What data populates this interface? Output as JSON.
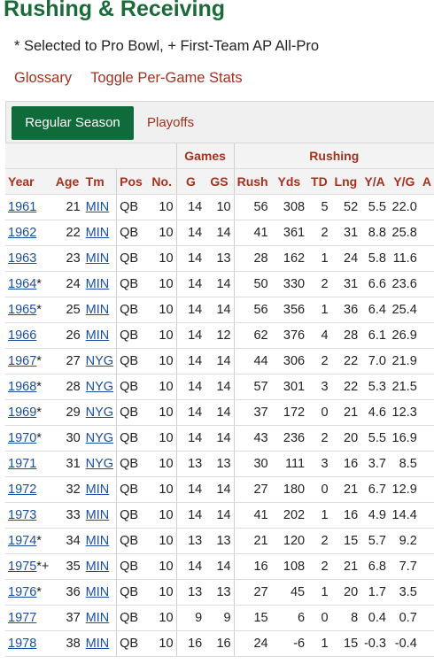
{
  "page": {
    "title": "Rushing & Receiving",
    "legend_note": "* Selected to Pro Bowl, + First-Team AP All-Pro",
    "links": {
      "glossary": "Glossary",
      "toggle": "Toggle Per-Game Stats"
    },
    "tabs": {
      "active": "Regular Season",
      "inactive": "Playoffs"
    }
  },
  "table": {
    "groups": {
      "games": "Games",
      "rushing": "Rushing"
    },
    "columns": [
      "Year",
      "Age",
      "Tm",
      "Pos",
      "No.",
      "G",
      "GS",
      "Rush",
      "Yds",
      "TD",
      "Lng",
      "Y/A",
      "Y/G",
      "A"
    ],
    "rows": [
      {
        "year": "1961",
        "note": "",
        "age": "21",
        "tm": "MIN",
        "pos": "QB",
        "no": "10",
        "g": "14",
        "gs": "10",
        "rush": "56",
        "yds": "308",
        "td": "5",
        "lng": "52",
        "ya": "5.5",
        "yg": "22.0"
      },
      {
        "year": "1962",
        "note": "",
        "age": "22",
        "tm": "MIN",
        "pos": "QB",
        "no": "10",
        "g": "14",
        "gs": "14",
        "rush": "41",
        "yds": "361",
        "td": "2",
        "lng": "31",
        "ya": "8.8",
        "yg": "25.8"
      },
      {
        "year": "1963",
        "note": "",
        "age": "23",
        "tm": "MIN",
        "pos": "QB",
        "no": "10",
        "g": "14",
        "gs": "13",
        "rush": "28",
        "yds": "162",
        "td": "1",
        "lng": "24",
        "ya": "5.8",
        "yg": "11.6"
      },
      {
        "year": "1964",
        "note": "*",
        "age": "24",
        "tm": "MIN",
        "pos": "QB",
        "no": "10",
        "g": "14",
        "gs": "14",
        "rush": "50",
        "yds": "330",
        "td": "2",
        "lng": "31",
        "ya": "6.6",
        "yg": "23.6"
      },
      {
        "year": "1965",
        "note": "*",
        "age": "25",
        "tm": "MIN",
        "pos": "QB",
        "no": "10",
        "g": "14",
        "gs": "14",
        "rush": "56",
        "yds": "356",
        "td": "1",
        "lng": "36",
        "ya": "6.4",
        "yg": "25.4"
      },
      {
        "year": "1966",
        "note": "",
        "age": "26",
        "tm": "MIN",
        "pos": "QB",
        "no": "10",
        "g": "14",
        "gs": "12",
        "rush": "62",
        "yds": "376",
        "td": "4",
        "lng": "28",
        "ya": "6.1",
        "yg": "26.9"
      },
      {
        "year": "1967",
        "note": "*",
        "age": "27",
        "tm": "NYG",
        "pos": "QB",
        "no": "10",
        "g": "14",
        "gs": "14",
        "rush": "44",
        "yds": "306",
        "td": "2",
        "lng": "22",
        "ya": "7.0",
        "yg": "21.9"
      },
      {
        "year": "1968",
        "note": "*",
        "age": "28",
        "tm": "NYG",
        "pos": "QB",
        "no": "10",
        "g": "14",
        "gs": "14",
        "rush": "57",
        "yds": "301",
        "td": "3",
        "lng": "22",
        "ya": "5.3",
        "yg": "21.5"
      },
      {
        "year": "1969",
        "note": "*",
        "age": "29",
        "tm": "NYG",
        "pos": "QB",
        "no": "10",
        "g": "14",
        "gs": "14",
        "rush": "37",
        "yds": "172",
        "td": "0",
        "lng": "21",
        "ya": "4.6",
        "yg": "12.3"
      },
      {
        "year": "1970",
        "note": "*",
        "age": "30",
        "tm": "NYG",
        "pos": "QB",
        "no": "10",
        "g": "14",
        "gs": "14",
        "rush": "43",
        "yds": "236",
        "td": "2",
        "lng": "20",
        "ya": "5.5",
        "yg": "16.9"
      },
      {
        "year": "1971",
        "note": "",
        "age": "31",
        "tm": "NYG",
        "pos": "QB",
        "no": "10",
        "g": "13",
        "gs": "13",
        "rush": "30",
        "yds": "111",
        "td": "3",
        "lng": "16",
        "ya": "3.7",
        "yg": "8.5"
      },
      {
        "year": "1972",
        "note": "",
        "age": "32",
        "tm": "MIN",
        "pos": "QB",
        "no": "10",
        "g": "14",
        "gs": "14",
        "rush": "27",
        "yds": "180",
        "td": "0",
        "lng": "21",
        "ya": "6.7",
        "yg": "12.9"
      },
      {
        "year": "1973",
        "note": "",
        "age": "33",
        "tm": "MIN",
        "pos": "QB",
        "no": "10",
        "g": "14",
        "gs": "14",
        "rush": "41",
        "yds": "202",
        "td": "1",
        "lng": "16",
        "ya": "4.9",
        "yg": "14.4"
      },
      {
        "year": "1974",
        "note": "*",
        "age": "34",
        "tm": "MIN",
        "pos": "QB",
        "no": "10",
        "g": "13",
        "gs": "13",
        "rush": "21",
        "yds": "120",
        "td": "2",
        "lng": "15",
        "ya": "5.7",
        "yg": "9.2"
      },
      {
        "year": "1975",
        "note": "*+",
        "age": "35",
        "tm": "MIN",
        "pos": "QB",
        "no": "10",
        "g": "14",
        "gs": "14",
        "rush": "16",
        "yds": "108",
        "td": "2",
        "lng": "21",
        "ya": "6.8",
        "yg": "7.7"
      },
      {
        "year": "1976",
        "note": "*",
        "age": "36",
        "tm": "MIN",
        "pos": "QB",
        "no": "10",
        "g": "13",
        "gs": "13",
        "rush": "27",
        "yds": "45",
        "td": "1",
        "lng": "20",
        "ya": "1.7",
        "yg": "3.5"
      },
      {
        "year": "1977",
        "note": "",
        "age": "37",
        "tm": "MIN",
        "pos": "QB",
        "no": "10",
        "g": "9",
        "gs": "9",
        "rush": "15",
        "yds": "6",
        "td": "0",
        "lng": "8",
        "ya": "0.4",
        "yg": "0.7"
      },
      {
        "year": "1978",
        "note": "",
        "age": "38",
        "tm": "MIN",
        "pos": "QB",
        "no": "10",
        "g": "16",
        "gs": "16",
        "rush": "24",
        "yds": "-6",
        "td": "1",
        "lng": "15",
        "ya": "-0.3",
        "yg": "-0.4"
      }
    ]
  },
  "colors": {
    "brand_green": "#1b6b3a",
    "tab_green": "#0f6b3a",
    "link_red": "#a3321f",
    "link_blue": "#1a4fa0"
  }
}
